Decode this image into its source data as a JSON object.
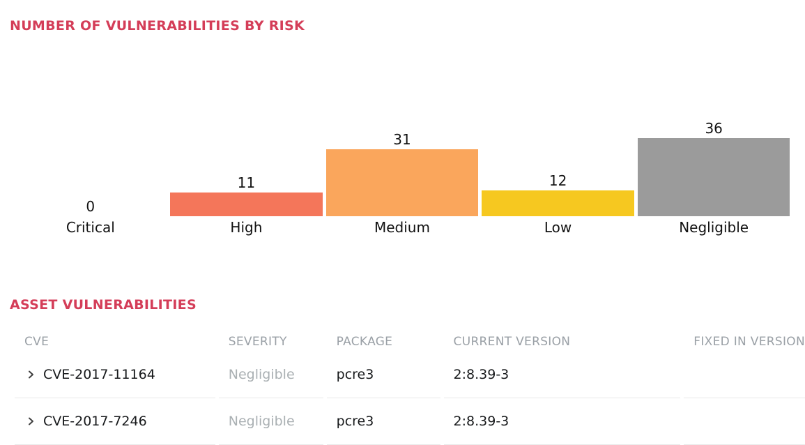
{
  "section_risk_chart": {
    "title": "NUMBER OF VULNERABILITIES BY RISK"
  },
  "chart_data": {
    "type": "bar",
    "title": "NUMBER OF VULNERABILITIES BY RISK",
    "categories": [
      "Critical",
      "High",
      "Medium",
      "Low",
      "Negligible"
    ],
    "values": [
      0,
      11,
      31,
      12,
      36
    ],
    "colors": [
      null,
      "#f4765a",
      "#faa65c",
      "#f6c820",
      "#9b9b9b"
    ],
    "xlabel": "",
    "ylabel": "",
    "ylim": [
      0,
      38
    ],
    "grid": false,
    "axes_hidden": true,
    "legend_position": "none",
    "value_labels": "above-bars"
  },
  "section_table": {
    "title": "ASSET VULNERABILITIES",
    "columns": [
      "CVE",
      "SEVERITY",
      "PACKAGE",
      "CURRENT VERSION",
      "FIXED IN VERSION"
    ],
    "rows": [
      {
        "cve": "CVE-2017-11164",
        "severity": "Negligible",
        "package": "pcre3",
        "current_version": "2:8.39-3",
        "fixed_in_version": ""
      },
      {
        "cve": "CVE-2017-7246",
        "severity": "Negligible",
        "package": "pcre3",
        "current_version": "2:8.39-3",
        "fixed_in_version": ""
      }
    ]
  },
  "icons": {
    "row_expander": "chevron-right-icon"
  },
  "colors": {
    "section_title": "#d43d58",
    "bar_high": "#f4765a",
    "bar_medium": "#faa65c",
    "bar_low": "#f6c820",
    "bar_negligible": "#9b9b9b",
    "table_header_text": "#9aa0a6",
    "severity_text": "#aab0b3",
    "body_text": "#17191b",
    "divider": "#e9e9e9",
    "chevron": "#3f3f3f",
    "background": "#ffffff"
  }
}
